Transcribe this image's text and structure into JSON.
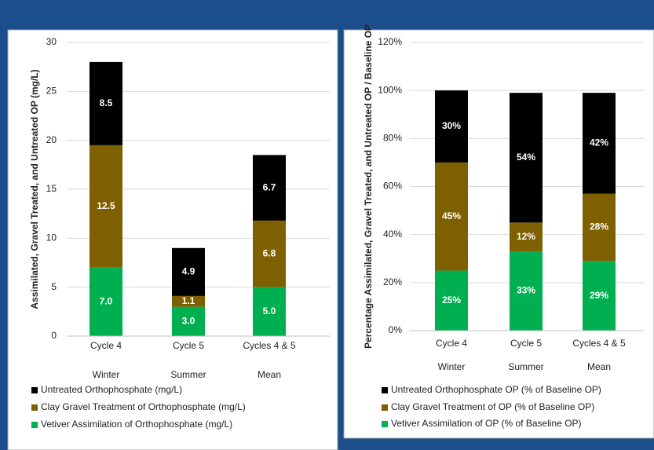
{
  "chart_data": [
    {
      "type": "bar",
      "stacked": true,
      "categories": [
        "Cycle 4",
        "Cycle 5",
        "Cycles 4 & 5"
      ],
      "category_sublabels": [
        "Winter",
        "Summer",
        "Mean"
      ],
      "y_label": "Assimilated, Gravel Treated, and Untreated OP (mg/L)",
      "ylim": [
        0,
        30
      ],
      "yticks": [
        0,
        5,
        10,
        15,
        20,
        25,
        30
      ],
      "grid": true,
      "series": [
        {
          "name": "Untreated Orthophosphate (mg/L)",
          "color": "#000000",
          "values": [
            8.5,
            4.9,
            6.7
          ],
          "value_labels": [
            "8.5",
            "4.9",
            "6.7"
          ]
        },
        {
          "name": "Clay Gravel Treatment of Orthophosphate (mg/L)",
          "color": "#7f6000",
          "values": [
            12.5,
            1.1,
            6.8
          ],
          "value_labels": [
            "12.5",
            "1.1",
            "6.8"
          ]
        },
        {
          "name": "Vetiver Assimilation of Orthophosphate (mg/L)",
          "color": "#00b050",
          "values": [
            7.0,
            3.0,
            5.0
          ],
          "value_labels": [
            "7.0",
            "3.0",
            "5.0"
          ]
        }
      ]
    },
    {
      "type": "bar",
      "stacked": true,
      "categories": [
        "Cycle 4",
        "Cycle 5",
        "Cycles 4 & 5"
      ],
      "category_sublabels": [
        "Winter",
        "Summer",
        "Mean"
      ],
      "y_label": "Percentage Assimilated, Gravel Treated, and Untreated OP / Baseline OP",
      "ylim": [
        0,
        120
      ],
      "yticks": [
        {
          "value": 0,
          "label": "0%"
        },
        {
          "value": 20,
          "label": "20%"
        },
        {
          "value": 40,
          "label": "40%"
        },
        {
          "value": 60,
          "label": "60%"
        },
        {
          "value": 80,
          "label": "80%"
        },
        {
          "value": 100,
          "label": "100%"
        },
        {
          "value": 120,
          "label": "120%"
        }
      ],
      "grid": true,
      "series": [
        {
          "name": "Untreated Orthophosphate OP (% of Baseline OP)",
          "color": "#000000",
          "values": [
            30,
            54,
            42
          ],
          "value_labels": [
            "30%",
            "54%",
            "42%"
          ]
        },
        {
          "name": "Clay Gravel Treatment of OP (% of Baseline OP)",
          "color": "#7f6000",
          "values": [
            45,
            12,
            28
          ],
          "value_labels": [
            "45%",
            "12%",
            "28%"
          ]
        },
        {
          "name": "Vetiver Assimilation of OP (% of Baseline OP)",
          "color": "#00b050",
          "values": [
            25,
            33,
            29
          ],
          "value_labels": [
            "25%",
            "33%",
            "29%"
          ]
        }
      ]
    }
  ]
}
